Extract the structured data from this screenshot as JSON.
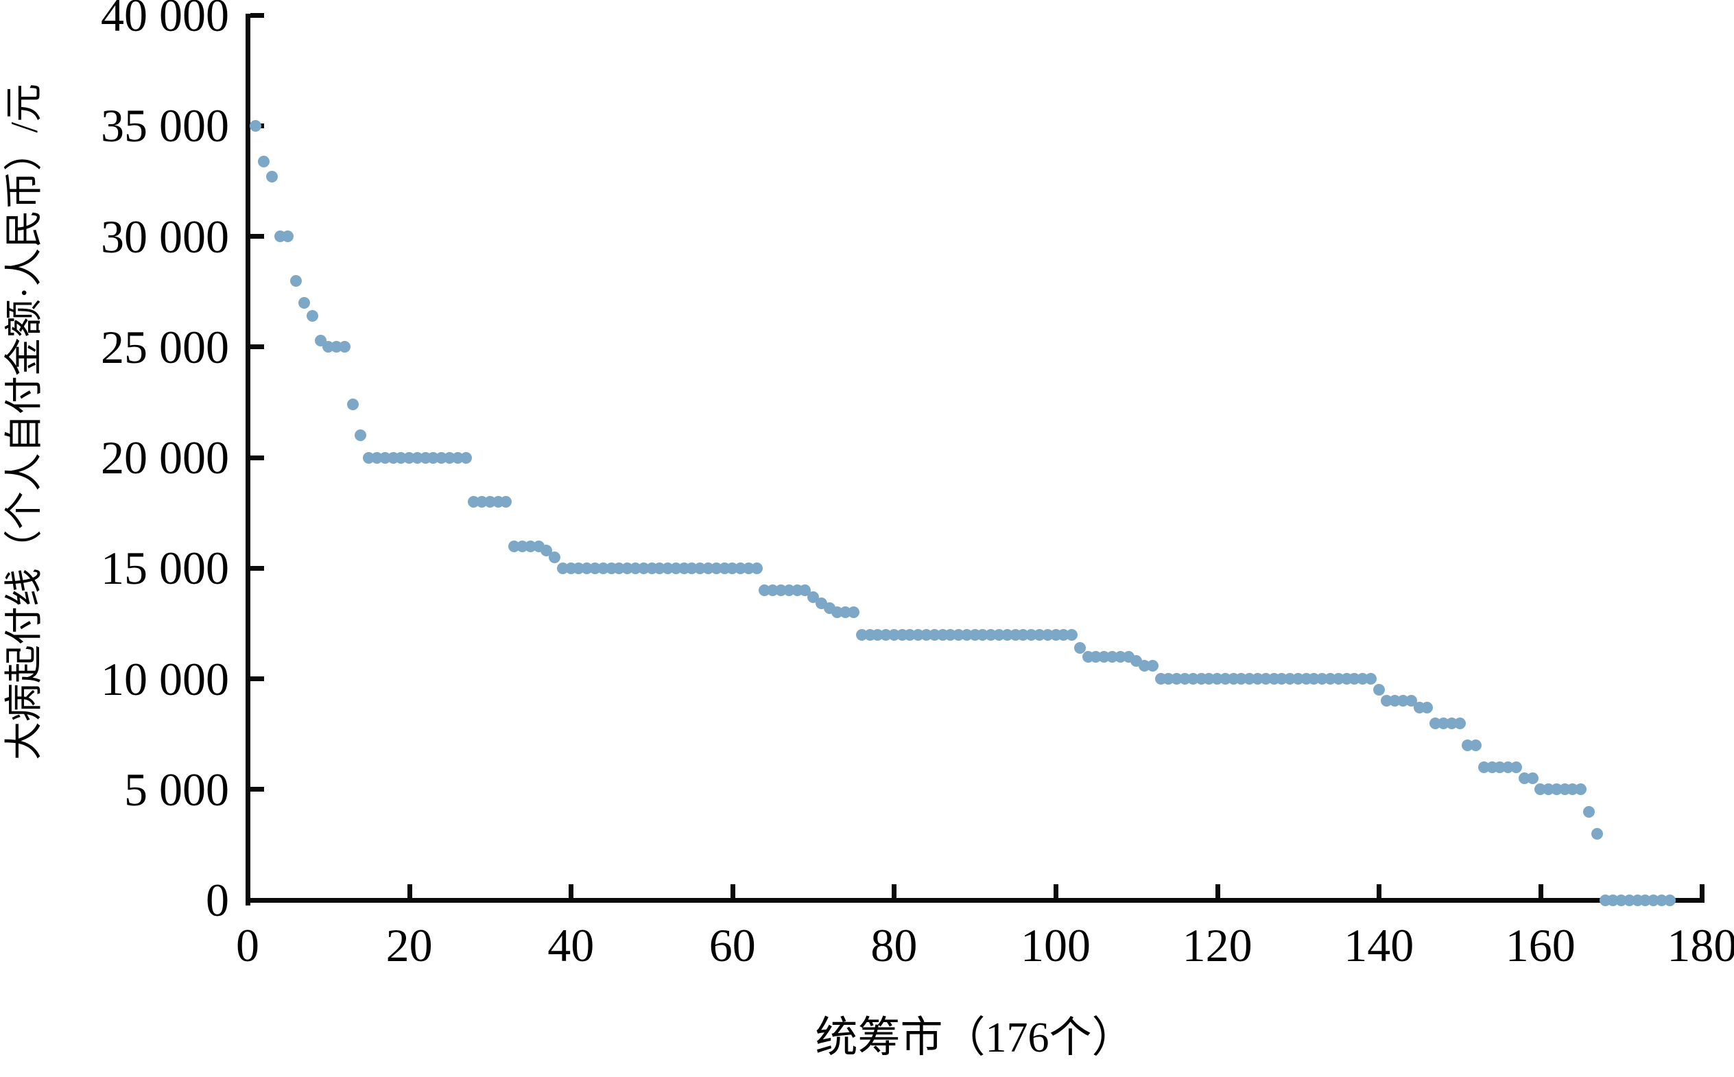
{
  "chart_data": {
    "type": "scatter",
    "title": "",
    "xlabel": "统筹市（176个）",
    "ylabel": "大病起付线（个人自付金额·人民币）/元",
    "x_description": "city rank 1-176 (sorted descending)",
    "xlim": [
      0,
      180
    ],
    "ylim": [
      0,
      40000
    ],
    "x_tick_values": [
      0,
      20,
      40,
      60,
      80,
      100,
      120,
      140,
      160,
      180
    ],
    "x_tick_labels": [
      "0",
      "20",
      "40",
      "60",
      "80",
      "100",
      "120",
      "140",
      "160",
      "180"
    ],
    "y_tick_values": [
      0,
      5000,
      10000,
      15000,
      20000,
      25000,
      30000,
      35000,
      40000
    ],
    "y_tick_labels": [
      "0",
      "5 000",
      "10 000",
      "15 000",
      "20 000",
      "25 000",
      "30 000",
      "35 000",
      "40 000"
    ],
    "grid": false,
    "legend": "none",
    "marker_color": "#7DA7C6",
    "axis_color": "#0a0a0a",
    "y": [
      35000,
      33400,
      32700,
      30000,
      30000,
      28000,
      27000,
      26400,
      25300,
      25000,
      25000,
      25000,
      22400,
      21000,
      20000,
      20000,
      20000,
      20000,
      20000,
      20000,
      20000,
      20000,
      20000,
      20000,
      20000,
      20000,
      20000,
      18000,
      18000,
      18000,
      18000,
      18000,
      16000,
      16000,
      16000,
      16000,
      15800,
      15500,
      15000,
      15000,
      15000,
      15000,
      15000,
      15000,
      15000,
      15000,
      15000,
      15000,
      15000,
      15000,
      15000,
      15000,
      15000,
      15000,
      15000,
      15000,
      15000,
      15000,
      15000,
      15000,
      15000,
      15000,
      15000,
      14000,
      14000,
      14000,
      14000,
      14000,
      14000,
      13700,
      13400,
      13200,
      13000,
      13000,
      13000,
      12000,
      12000,
      12000,
      12000,
      12000,
      12000,
      12000,
      12000,
      12000,
      12000,
      12000,
      12000,
      12000,
      12000,
      12000,
      12000,
      12000,
      12000,
      12000,
      12000,
      12000,
      12000,
      12000,
      12000,
      12000,
      12000,
      12000,
      11400,
      11000,
      11000,
      11000,
      11000,
      11000,
      11000,
      10800,
      10600,
      10600,
      10000,
      10000,
      10000,
      10000,
      10000,
      10000,
      10000,
      10000,
      10000,
      10000,
      10000,
      10000,
      10000,
      10000,
      10000,
      10000,
      10000,
      10000,
      10000,
      10000,
      10000,
      10000,
      10000,
      10000,
      10000,
      10000,
      10000,
      9500,
      9000,
      9000,
      9000,
      9000,
      8700,
      8700,
      8000,
      8000,
      8000,
      8000,
      7000,
      7000,
      6000,
      6000,
      6000,
      6000,
      6000,
      5500,
      5500,
      5000,
      5000,
      5000,
      5000,
      5000,
      5000,
      4000,
      3000,
      0,
      0,
      0,
      0,
      0,
      0,
      0,
      0,
      0
    ]
  }
}
